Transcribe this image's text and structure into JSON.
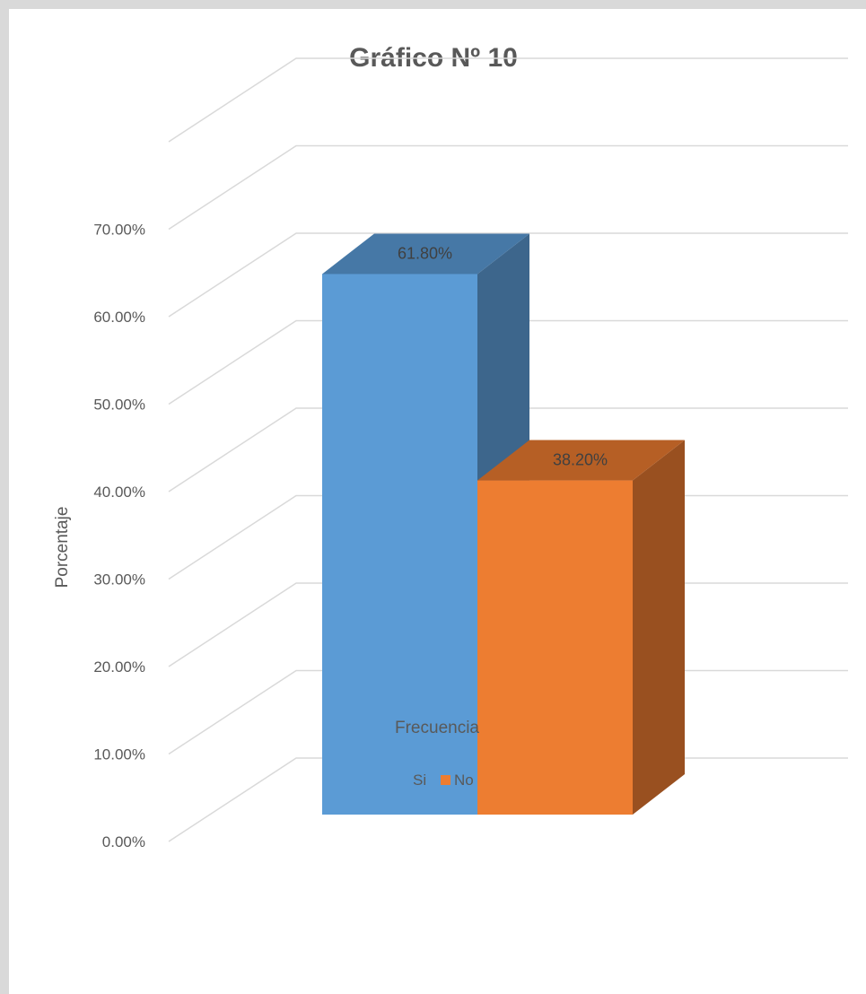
{
  "chart_data": {
    "type": "bar",
    "title": "Gráfico Nº 10",
    "categories": [
      "Frecuencia"
    ],
    "xlabel": "",
    "ylabel": "Porcentaje",
    "ylim": [
      0,
      80
    ],
    "yticks": [
      "0.00%",
      "10.00%",
      "20.00%",
      "30.00%",
      "40.00%",
      "50.00%",
      "60.00%",
      "70.00%"
    ],
    "grid": true,
    "legend": "bottom",
    "style": "3d-column",
    "series": [
      {
        "name": "Si",
        "values": [
          61.8
        ],
        "label": "61.80%",
        "color": "#5b9bd5",
        "color_side": "#3d668c",
        "color_top": "#4678a6"
      },
      {
        "name": "No",
        "values": [
          38.2
        ],
        "label": "38.20%",
        "color": "#ed7d31",
        "color_side": "#995020",
        "color_top": "#b65f25"
      }
    ]
  }
}
